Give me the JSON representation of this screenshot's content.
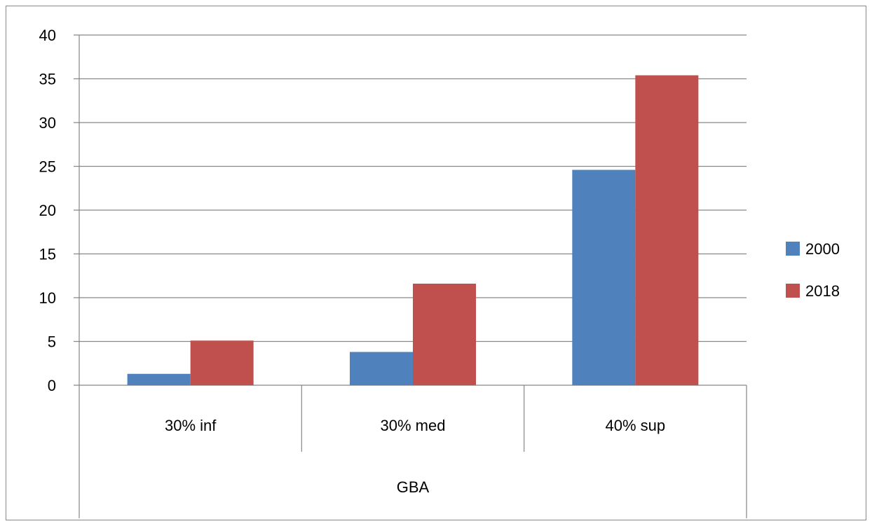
{
  "chart_data": {
    "type": "bar",
    "title": "",
    "xlabel": "",
    "ylabel": "",
    "categories": [
      "30% inf",
      "30% med",
      "40% sup"
    ],
    "group_label": "GBA",
    "series": [
      {
        "name": "2000",
        "color": "#4F81BD",
        "values": [
          1.3,
          3.8,
          24.6
        ]
      },
      {
        "name": "2018",
        "color": "#C0504D",
        "values": [
          5.1,
          11.6,
          35.4
        ]
      }
    ],
    "ylim": [
      0,
      40
    ],
    "yticks": [
      0,
      5,
      10,
      15,
      20,
      25,
      30,
      35,
      40
    ],
    "grid": true,
    "legend_position": "right"
  }
}
